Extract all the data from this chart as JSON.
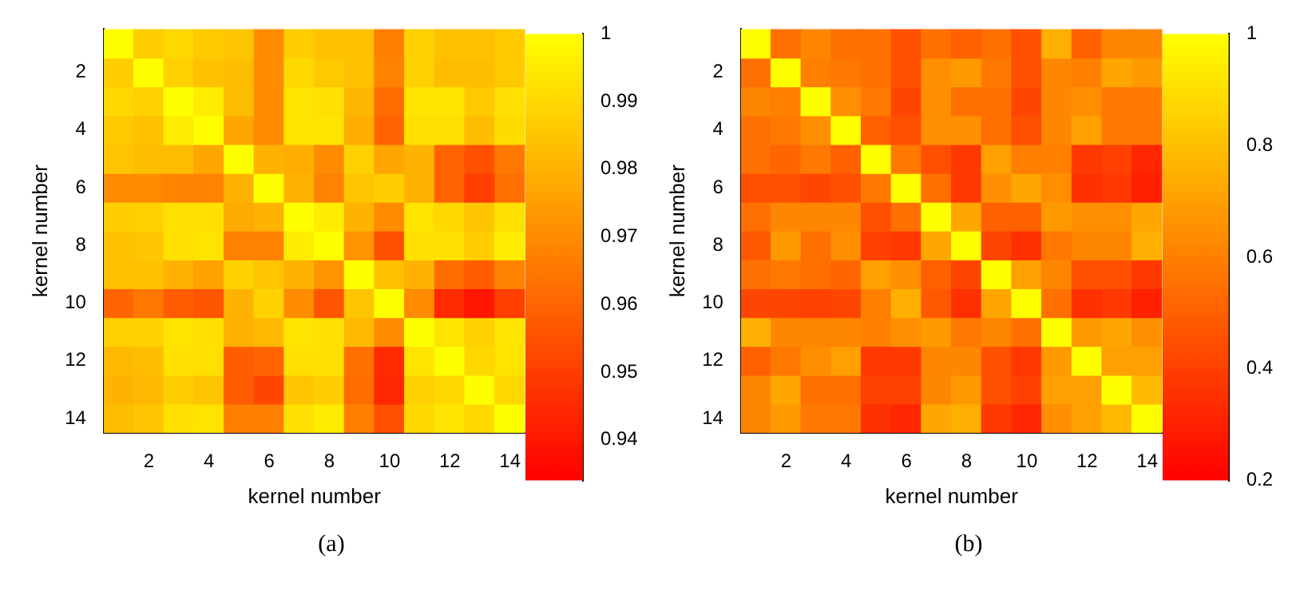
{
  "chart_data": [
    {
      "type": "heatmap",
      "xlabel": "kernel number",
      "ylabel": "kernel number",
      "categories": [
        null,
        "2",
        null,
        "4",
        null,
        "6",
        null,
        "8",
        null,
        "10",
        null,
        "12",
        null,
        "14"
      ],
      "y_categories": [
        null,
        "2",
        null,
        "4",
        null,
        "6",
        null,
        "8",
        null,
        "10",
        null,
        "12",
        null,
        "14"
      ],
      "cells": [
        [
          1,
          0.987,
          0.99,
          0.986,
          0.985,
          0.97,
          0.987,
          0.984,
          0.984,
          0.967,
          0.988,
          0.984,
          0.984,
          0.986
        ],
        [
          0.987,
          1,
          0.988,
          0.984,
          0.983,
          0.97,
          0.99,
          0.986,
          0.984,
          0.968,
          0.988,
          0.983,
          0.983,
          0.986
        ],
        [
          0.99,
          0.988,
          1,
          0.995,
          0.983,
          0.97,
          0.993,
          0.992,
          0.981,
          0.962,
          0.993,
          0.993,
          0.986,
          0.992
        ],
        [
          0.986,
          0.984,
          0.995,
          1,
          0.977,
          0.97,
          0.993,
          0.993,
          0.979,
          0.96,
          0.992,
          0.992,
          0.983,
          0.991
        ],
        [
          0.985,
          0.983,
          0.983,
          0.977,
          1,
          0.98,
          0.979,
          0.97,
          0.988,
          0.977,
          0.98,
          0.96,
          0.955,
          0.965
        ],
        [
          0.97,
          0.97,
          0.968,
          0.968,
          0.98,
          1,
          0.98,
          0.968,
          0.985,
          0.987,
          0.98,
          0.96,
          0.95,
          0.963
        ],
        [
          0.987,
          0.988,
          0.992,
          0.992,
          0.978,
          0.98,
          1,
          0.995,
          0.98,
          0.97,
          0.993,
          0.99,
          0.985,
          0.992
        ],
        [
          0.984,
          0.985,
          0.992,
          0.993,
          0.968,
          0.968,
          0.995,
          1,
          0.972,
          0.955,
          0.992,
          0.992,
          0.987,
          0.995
        ],
        [
          0.984,
          0.984,
          0.98,
          0.976,
          0.988,
          0.985,
          0.98,
          0.972,
          1,
          0.984,
          0.98,
          0.962,
          0.958,
          0.968
        ],
        [
          0.96,
          0.965,
          0.958,
          0.956,
          0.98,
          0.988,
          0.97,
          0.956,
          0.985,
          1,
          0.97,
          0.945,
          0.94,
          0.95
        ],
        [
          0.988,
          0.988,
          0.993,
          0.992,
          0.98,
          0.982,
          0.993,
          0.992,
          0.982,
          0.97,
          1,
          0.993,
          0.988,
          0.993
        ],
        [
          0.982,
          0.983,
          0.992,
          0.992,
          0.958,
          0.96,
          0.992,
          0.992,
          0.963,
          0.945,
          0.993,
          1,
          0.99,
          0.993
        ],
        [
          0.98,
          0.982,
          0.987,
          0.985,
          0.958,
          0.952,
          0.985,
          0.987,
          0.962,
          0.944,
          0.988,
          0.99,
          1,
          0.99
        ],
        [
          0.983,
          0.985,
          0.992,
          0.993,
          0.967,
          0.967,
          0.992,
          0.995,
          0.967,
          0.955,
          0.99,
          0.993,
          0.99,
          1
        ]
      ],
      "clim": [
        0.934,
        1
      ],
      "cticks": [
        0.94,
        0.95,
        0.96,
        0.97,
        0.98,
        0.99,
        1
      ],
      "annotations": [
        "(a)"
      ]
    },
    {
      "type": "heatmap",
      "xlabel": "kernel number",
      "ylabel": "kernel number",
      "categories": [
        null,
        "2",
        null,
        "4",
        null,
        "6",
        null,
        "8",
        null,
        "10",
        null,
        "12",
        null,
        "14"
      ],
      "y_categories": [
        null,
        "2",
        null,
        "4",
        null,
        "6",
        null,
        "8",
        null,
        "10",
        null,
        "12",
        null,
        "14"
      ],
      "cells": [
        [
          1,
          0.55,
          0.62,
          0.55,
          0.55,
          0.45,
          0.55,
          0.5,
          0.55,
          0.45,
          0.75,
          0.5,
          0.62,
          0.62
        ],
        [
          0.55,
          1,
          0.6,
          0.58,
          0.55,
          0.45,
          0.65,
          0.68,
          0.58,
          0.45,
          0.62,
          0.6,
          0.72,
          0.68
        ],
        [
          0.62,
          0.6,
          1,
          0.65,
          0.58,
          0.42,
          0.65,
          0.55,
          0.55,
          0.42,
          0.62,
          0.65,
          0.58,
          0.58
        ],
        [
          0.55,
          0.58,
          0.65,
          1,
          0.5,
          0.45,
          0.65,
          0.65,
          0.55,
          0.45,
          0.62,
          0.7,
          0.58,
          0.58
        ],
        [
          0.55,
          0.52,
          0.58,
          0.5,
          1,
          0.58,
          0.45,
          0.38,
          0.7,
          0.6,
          0.6,
          0.38,
          0.4,
          0.32
        ],
        [
          0.45,
          0.45,
          0.42,
          0.45,
          0.58,
          1,
          0.55,
          0.38,
          0.65,
          0.72,
          0.65,
          0.35,
          0.38,
          0.3
        ],
        [
          0.55,
          0.62,
          0.62,
          0.62,
          0.45,
          0.55,
          1,
          0.72,
          0.5,
          0.5,
          0.68,
          0.65,
          0.65,
          0.72
        ],
        [
          0.48,
          0.68,
          0.55,
          0.65,
          0.4,
          0.38,
          0.72,
          1,
          0.42,
          0.35,
          0.58,
          0.62,
          0.62,
          0.75
        ],
        [
          0.55,
          0.58,
          0.55,
          0.52,
          0.7,
          0.65,
          0.5,
          0.42,
          1,
          0.7,
          0.62,
          0.45,
          0.45,
          0.38
        ],
        [
          0.42,
          0.42,
          0.4,
          0.42,
          0.6,
          0.75,
          0.48,
          0.35,
          0.72,
          1,
          0.55,
          0.35,
          0.38,
          0.3
        ],
        [
          0.75,
          0.62,
          0.62,
          0.62,
          0.6,
          0.65,
          0.68,
          0.58,
          0.62,
          0.55,
          1,
          0.68,
          0.72,
          0.65
        ],
        [
          0.5,
          0.58,
          0.65,
          0.7,
          0.38,
          0.38,
          0.62,
          0.62,
          0.45,
          0.38,
          0.68,
          1,
          0.7,
          0.7
        ],
        [
          0.62,
          0.72,
          0.55,
          0.55,
          0.4,
          0.4,
          0.62,
          0.68,
          0.45,
          0.4,
          0.7,
          0.7,
          1,
          0.78
        ],
        [
          0.62,
          0.68,
          0.58,
          0.58,
          0.35,
          0.32,
          0.72,
          0.75,
          0.38,
          0.32,
          0.65,
          0.7,
          0.78,
          1
        ]
      ],
      "clim": [
        0.2,
        1
      ],
      "cticks": [
        0.2,
        0.4,
        0.6,
        0.8,
        1
      ],
      "annotations": [
        "(b)"
      ]
    }
  ]
}
